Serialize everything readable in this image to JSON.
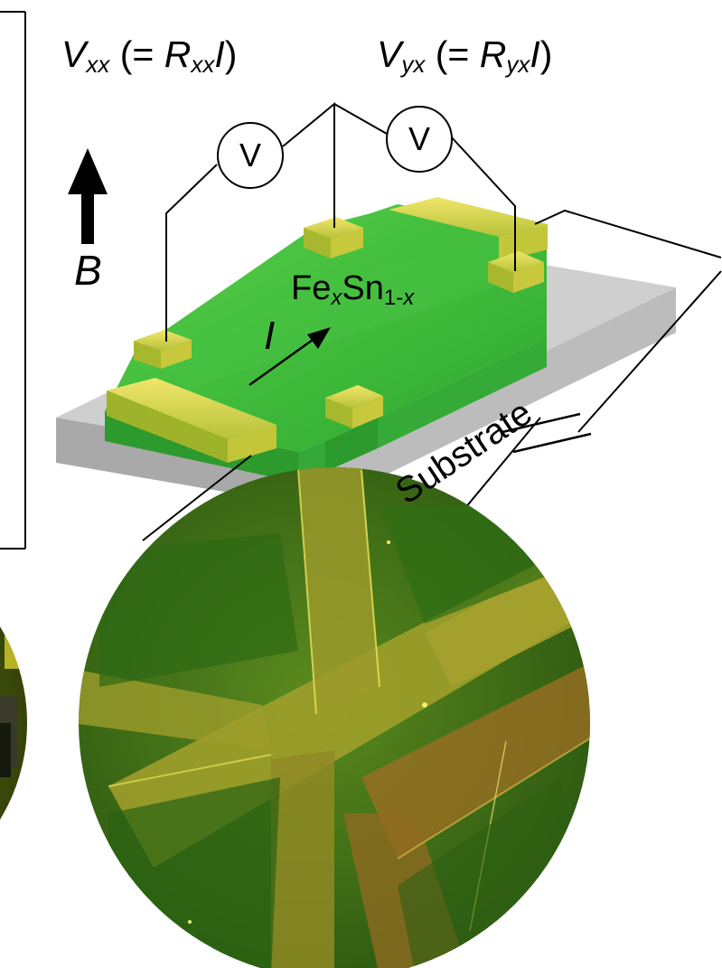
{
  "labels": {
    "vxx_main": "V",
    "vxx_sub": "xx",
    "vxx_open": " (= ",
    "vxx_r": "R",
    "vxx_rsub": "xx",
    "vxx_i": "I",
    "vxx_close": ")",
    "vyx_main": "V",
    "vyx_sub": "yx",
    "vyx_open": " (= ",
    "vyx_r": "R",
    "vyx_rsub": "yx",
    "vyx_i": "I",
    "vyx_close": ")",
    "voltmeter_1": "V",
    "voltmeter_2": "V",
    "field": "B",
    "current": "I",
    "material_base1": "Fe",
    "material_sub1": "x",
    "material_base2": "Sn",
    "material_sub2_a": "1-",
    "material_sub2_b": "x",
    "substrate": "Substrate"
  },
  "colors": {
    "film_green": "#3ec43a",
    "contact_yellow": "#d8d23a",
    "substrate_gray": "#bdbdbd",
    "micrograph_bg": "#2f6a12"
  }
}
